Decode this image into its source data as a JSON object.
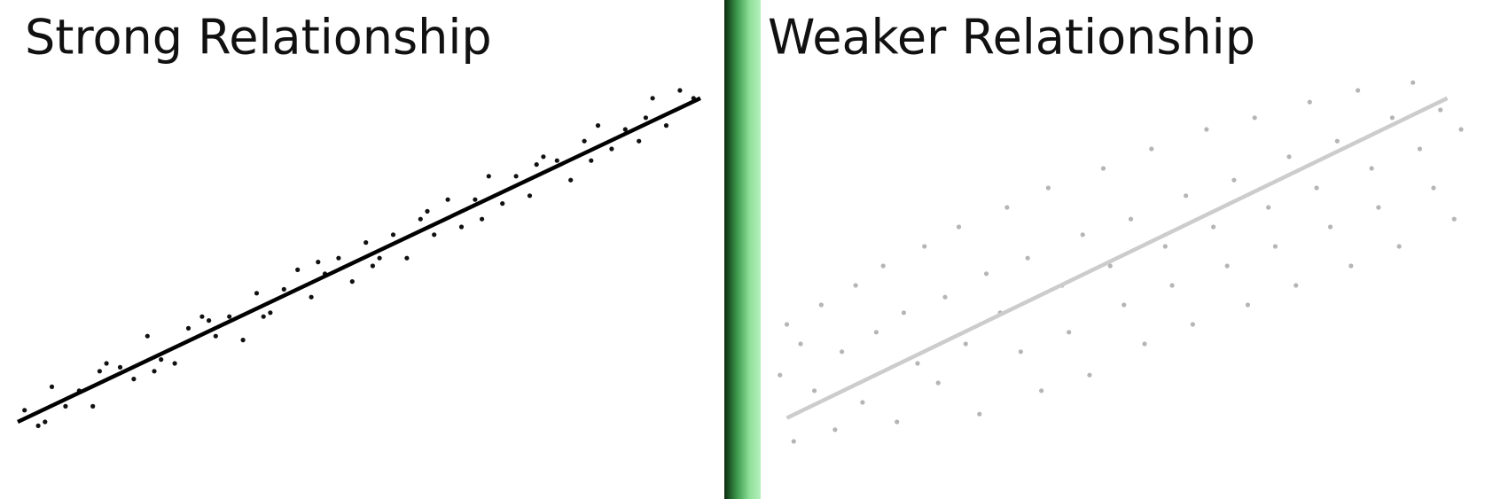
{
  "chart_data": [
    {
      "type": "scatter",
      "title": "Strong Relationship",
      "color": "#111111",
      "line_color": "#000000",
      "xlim": [
        0,
        100
      ],
      "ylim": [
        0,
        100
      ],
      "x": [
        1,
        3,
        5,
        7,
        9,
        11,
        13,
        15,
        17,
        19,
        21,
        23,
        25,
        27,
        29,
        31,
        33,
        35,
        37,
        39,
        41,
        43,
        45,
        47,
        49,
        51,
        53,
        55,
        57,
        59,
        61,
        63,
        65,
        67,
        69,
        71,
        73,
        75,
        77,
        79,
        81,
        83,
        85,
        87,
        89,
        91,
        93,
        95,
        97,
        99,
        4,
        12,
        20,
        28,
        36,
        44,
        52,
        60,
        68,
        76,
        84,
        92
      ],
      "values": [
        13,
        9,
        19,
        14,
        18,
        14,
        25,
        24,
        21,
        32,
        26,
        25,
        34,
        37,
        32,
        37,
        31,
        43,
        38,
        44,
        49,
        42,
        48,
        52,
        46,
        56,
        52,
        58,
        52,
        62,
        58,
        67,
        60,
        67,
        73,
        66,
        73,
        68,
        78,
        77,
        72,
        82,
        86,
        80,
        85,
        82,
        93,
        86,
        95,
        93,
        10,
        23,
        23,
        36,
        37,
        51,
        50,
        64,
        62,
        76,
        77,
        88
      ],
      "trendline": {
        "x": [
          0,
          100
        ],
        "y": [
          10,
          93
        ]
      }
    },
    {
      "type": "scatter",
      "title": "Weaker Relationship",
      "color": "#b5b5b5",
      "line_color": "#cccccc",
      "xlim": [
        0,
        100
      ],
      "ylim": [
        0,
        100
      ],
      "x": [
        1,
        2,
        3,
        4,
        6,
        7,
        9,
        10,
        12,
        13,
        15,
        16,
        18,
        19,
        21,
        22,
        24,
        25,
        27,
        28,
        30,
        31,
        33,
        34,
        36,
        37,
        39,
        40,
        42,
        43,
        45,
        46,
        48,
        49,
        51,
        52,
        54,
        55,
        57,
        58,
        60,
        61,
        63,
        64,
        66,
        67,
        69,
        70,
        72,
        73,
        75,
        76,
        78,
        79,
        81,
        82,
        84,
        85,
        87,
        88,
        90,
        91,
        93,
        94,
        96,
        97,
        99,
        100
      ],
      "values": [
        22,
        35,
        5,
        30,
        18,
        40,
        8,
        28,
        45,
        15,
        33,
        50,
        10,
        38,
        25,
        55,
        20,
        42,
        60,
        30,
        12,
        48,
        38,
        65,
        28,
        52,
        18,
        70,
        45,
        33,
        58,
        22,
        75,
        50,
        40,
        62,
        30,
        80,
        55,
        45,
        68,
        35,
        85,
        60,
        50,
        72,
        40,
        88,
        65,
        55,
        78,
        45,
        92,
        70,
        60,
        82,
        50,
        95,
        75,
        65,
        88,
        55,
        97,
        80,
        70,
        90,
        62,
        85
      ],
      "trendline": {
        "x": [
          2,
          98
        ],
        "y": [
          11,
          93
        ]
      }
    }
  ]
}
